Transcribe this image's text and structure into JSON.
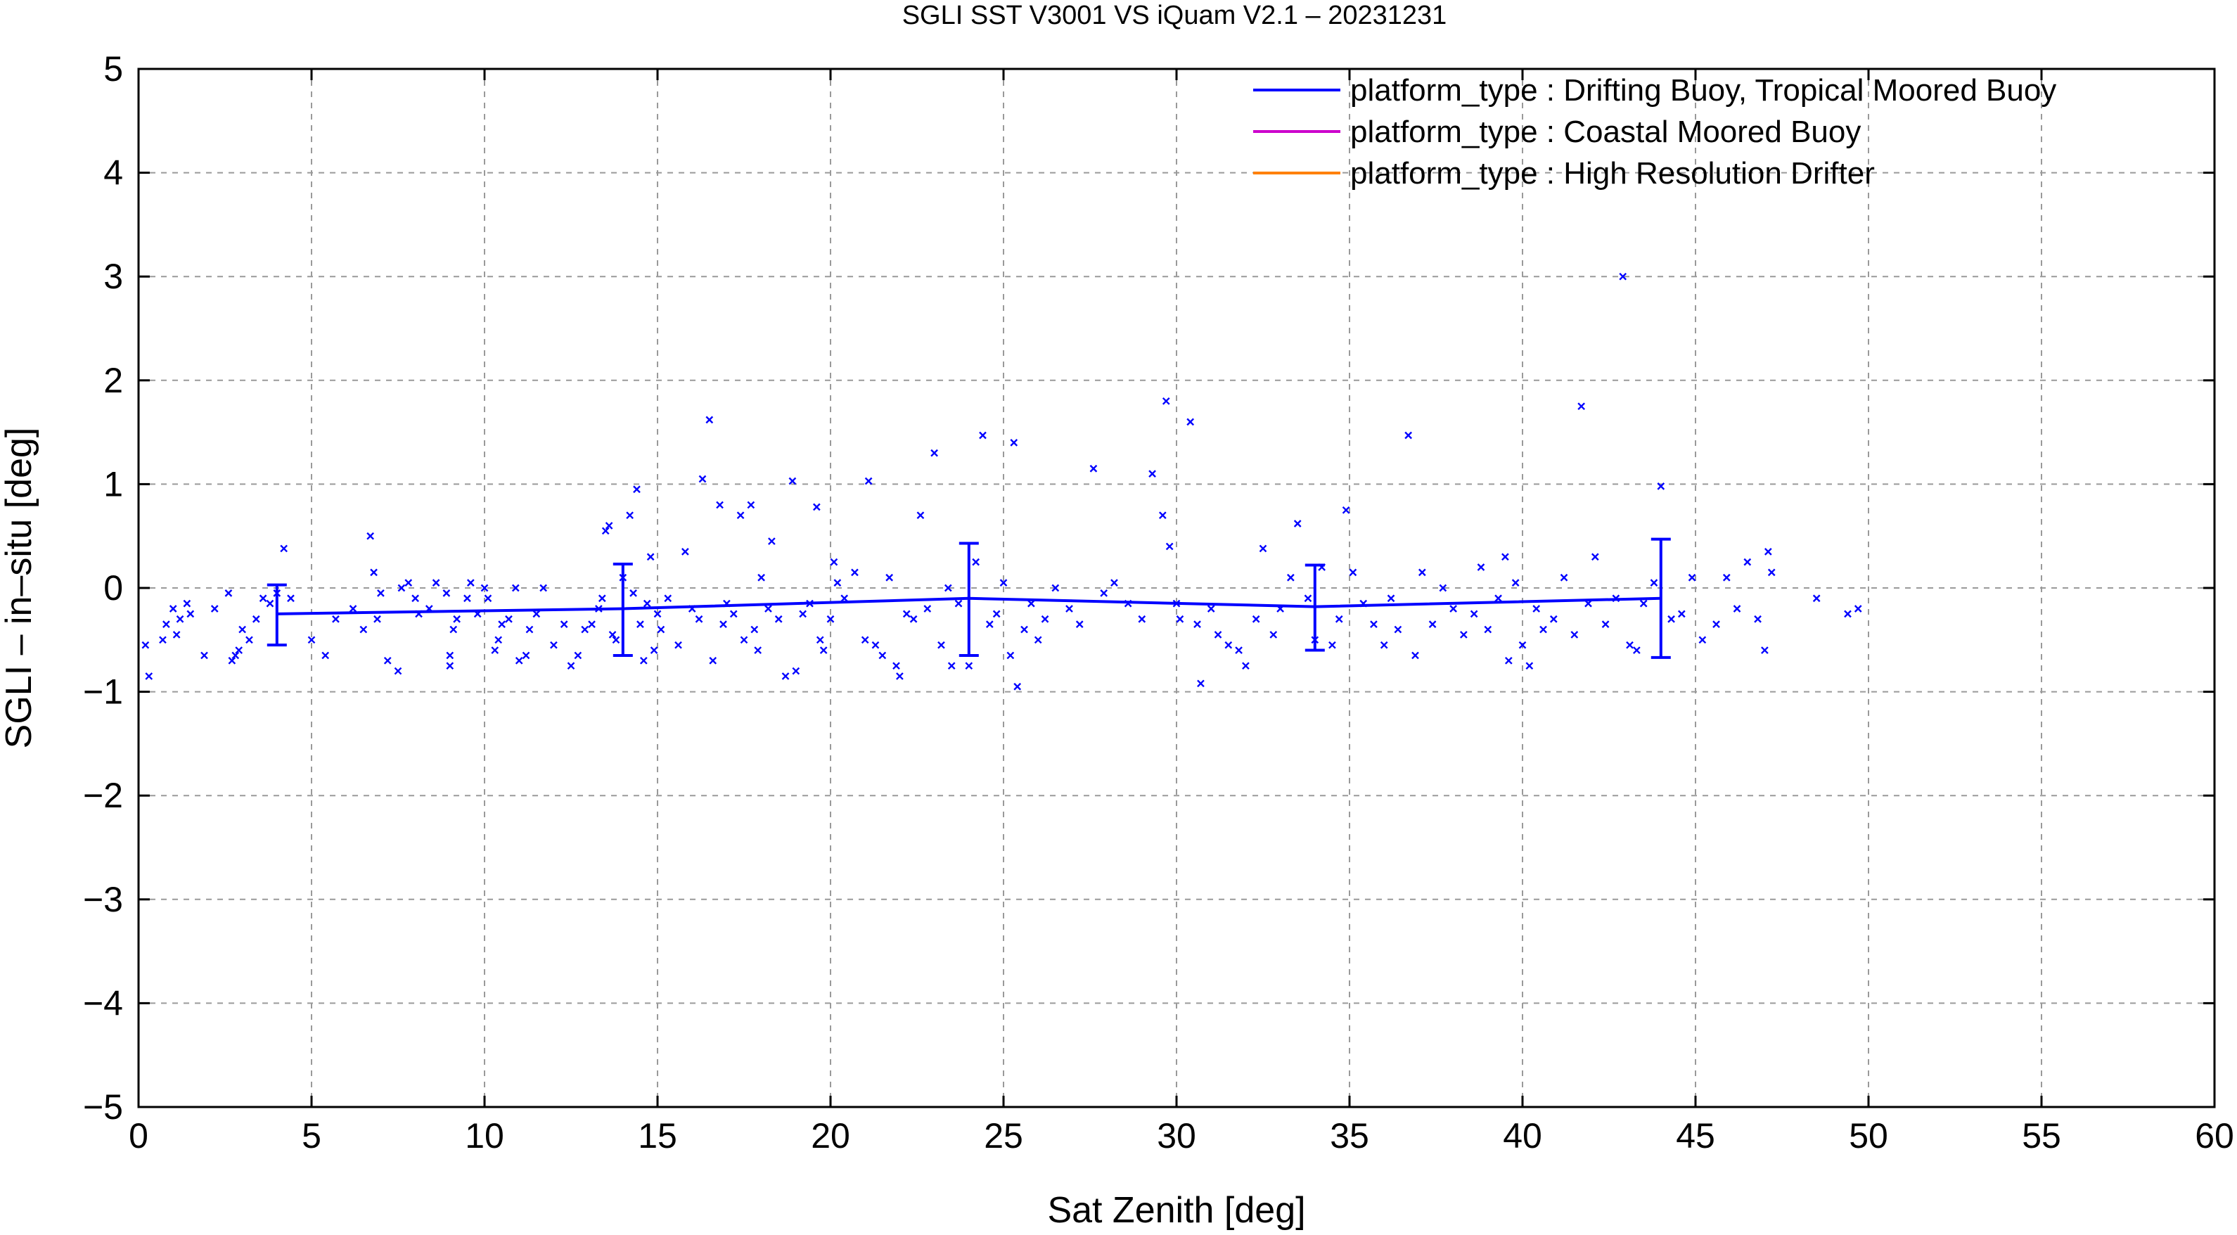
{
  "chart_data": {
    "type": "scatter",
    "title": "SGLI SST V3001 VS iQuam V2.1  – 20231231",
    "xlabel": "Sat Zenith [deg]",
    "ylabel": "SGLI – in–situ [deg]",
    "xlim": [
      0,
      60
    ],
    "ylim": [
      -5,
      5
    ],
    "xticks": [
      0,
      5,
      10,
      15,
      20,
      25,
      30,
      35,
      40,
      45,
      50,
      55,
      60
    ],
    "yticks": [
      5,
      4,
      3,
      2,
      1,
      0,
      -1,
      -2,
      -3,
      -4,
      -5
    ],
    "xtick_labels": [
      "0",
      "5",
      "10",
      "15",
      "20",
      "25",
      "30",
      "35",
      "40",
      "45",
      "50",
      "55",
      "60"
    ],
    "ytick_labels": [
      "5",
      "4",
      "3",
      "2",
      "1",
      "0",
      "−1",
      "−2",
      "−3",
      "−4",
      "−5"
    ],
    "grid": true,
    "legend_position": "top-right",
    "series": [
      {
        "name": "platform_type : Drifting Buoy, Tropical Moored Buoy",
        "color": "#0000ff",
        "mean_line": {
          "x": [
            4,
            14,
            24,
            34,
            44
          ],
          "y": [
            -0.25,
            -0.2,
            -0.1,
            -0.18,
            -0.1
          ],
          "err_low": [
            -0.55,
            -0.65,
            -0.65,
            -0.6,
            -0.67
          ],
          "err_high": [
            0.03,
            0.23,
            0.43,
            0.22,
            0.47
          ]
        },
        "points": [
          [
            0.2,
            -0.55
          ],
          [
            0.3,
            -0.85
          ],
          [
            0.7,
            -0.5
          ],
          [
            0.8,
            -0.35
          ],
          [
            1.0,
            -0.2
          ],
          [
            1.1,
            -0.45
          ],
          [
            1.2,
            -0.3
          ],
          [
            1.4,
            -0.15
          ],
          [
            1.5,
            -0.25
          ],
          [
            1.9,
            -0.65
          ],
          [
            2.2,
            -0.2
          ],
          [
            2.6,
            -0.05
          ],
          [
            2.7,
            -0.7
          ],
          [
            2.8,
            -0.65
          ],
          [
            2.9,
            -0.6
          ],
          [
            3.0,
            -0.4
          ],
          [
            3.2,
            -0.5
          ],
          [
            3.4,
            -0.3
          ],
          [
            3.6,
            -0.1
          ],
          [
            3.8,
            -0.15
          ],
          [
            4.0,
            -0.05
          ],
          [
            4.2,
            0.38
          ],
          [
            4.4,
            -0.1
          ],
          [
            5.0,
            -0.5
          ],
          [
            5.4,
            -0.65
          ],
          [
            5.7,
            -0.3
          ],
          [
            6.2,
            -0.2
          ],
          [
            6.5,
            -0.4
          ],
          [
            6.7,
            0.5
          ],
          [
            6.8,
            0.15
          ],
          [
            6.9,
            -0.3
          ],
          [
            7.0,
            -0.05
          ],
          [
            7.2,
            -0.7
          ],
          [
            7.5,
            -0.8
          ],
          [
            7.6,
            0.0
          ],
          [
            7.8,
            0.05
          ],
          [
            8.0,
            -0.1
          ],
          [
            8.1,
            -0.25
          ],
          [
            8.4,
            -0.2
          ],
          [
            8.6,
            0.05
          ],
          [
            8.9,
            -0.05
          ],
          [
            9.0,
            -0.75
          ],
          [
            9.0,
            -0.65
          ],
          [
            9.1,
            -0.4
          ],
          [
            9.2,
            -0.3
          ],
          [
            9.5,
            -0.1
          ],
          [
            9.6,
            0.05
          ],
          [
            9.8,
            -0.25
          ],
          [
            10.0,
            0.0
          ],
          [
            10.1,
            -0.1
          ],
          [
            10.3,
            -0.6
          ],
          [
            10.4,
            -0.5
          ],
          [
            10.5,
            -0.35
          ],
          [
            10.7,
            -0.3
          ],
          [
            10.9,
            0.0
          ],
          [
            11.0,
            -0.7
          ],
          [
            11.2,
            -0.65
          ],
          [
            11.3,
            -0.4
          ],
          [
            11.5,
            -0.25
          ],
          [
            11.7,
            0.0
          ],
          [
            12.0,
            -0.55
          ],
          [
            12.3,
            -0.35
          ],
          [
            12.5,
            -0.75
          ],
          [
            12.7,
            -0.65
          ],
          [
            12.9,
            -0.4
          ],
          [
            13.1,
            -0.35
          ],
          [
            13.3,
            -0.2
          ],
          [
            13.4,
            -0.1
          ],
          [
            13.5,
            0.55
          ],
          [
            13.6,
            0.6
          ],
          [
            13.7,
            -0.45
          ],
          [
            13.8,
            -0.5
          ],
          [
            14.0,
            0.1
          ],
          [
            14.2,
            0.7
          ],
          [
            14.3,
            -0.05
          ],
          [
            14.4,
            0.95
          ],
          [
            14.5,
            -0.35
          ],
          [
            14.6,
            -0.7
          ],
          [
            14.7,
            -0.15
          ],
          [
            14.8,
            0.3
          ],
          [
            14.9,
            -0.6
          ],
          [
            15.0,
            -0.25
          ],
          [
            15.1,
            -0.4
          ],
          [
            15.3,
            -0.1
          ],
          [
            15.6,
            -0.55
          ],
          [
            15.8,
            0.35
          ],
          [
            16.0,
            -0.2
          ],
          [
            16.2,
            -0.3
          ],
          [
            16.3,
            1.05
          ],
          [
            16.5,
            1.62
          ],
          [
            16.6,
            -0.7
          ],
          [
            16.8,
            0.8
          ],
          [
            16.9,
            -0.35
          ],
          [
            17.0,
            -0.15
          ],
          [
            17.2,
            -0.25
          ],
          [
            17.4,
            0.7
          ],
          [
            17.5,
            -0.5
          ],
          [
            17.7,
            0.8
          ],
          [
            17.8,
            -0.4
          ],
          [
            17.9,
            -0.6
          ],
          [
            18.0,
            0.1
          ],
          [
            18.2,
            -0.2
          ],
          [
            18.3,
            0.45
          ],
          [
            18.5,
            -0.3
          ],
          [
            18.7,
            -0.85
          ],
          [
            18.9,
            1.03
          ],
          [
            19.0,
            -0.8
          ],
          [
            19.2,
            -0.25
          ],
          [
            19.4,
            -0.15
          ],
          [
            19.6,
            0.78
          ],
          [
            19.7,
            -0.5
          ],
          [
            19.8,
            -0.6
          ],
          [
            20.0,
            -0.3
          ],
          [
            20.1,
            0.25
          ],
          [
            20.2,
            0.05
          ],
          [
            20.4,
            -0.1
          ],
          [
            20.7,
            0.15
          ],
          [
            21.0,
            -0.5
          ],
          [
            21.1,
            1.03
          ],
          [
            21.3,
            -0.55
          ],
          [
            21.5,
            -0.65
          ],
          [
            21.7,
            0.1
          ],
          [
            21.9,
            -0.75
          ],
          [
            22.0,
            -0.85
          ],
          [
            22.2,
            -0.25
          ],
          [
            22.4,
            -0.3
          ],
          [
            22.6,
            0.7
          ],
          [
            22.8,
            -0.2
          ],
          [
            23.0,
            1.3
          ],
          [
            23.2,
            -0.55
          ],
          [
            23.4,
            0.0
          ],
          [
            23.5,
            -0.75
          ],
          [
            23.7,
            -0.15
          ],
          [
            24.0,
            -0.75
          ],
          [
            24.2,
            0.25
          ],
          [
            24.4,
            1.47
          ],
          [
            24.6,
            -0.35
          ],
          [
            24.8,
            -0.25
          ],
          [
            25.0,
            0.05
          ],
          [
            25.2,
            -0.65
          ],
          [
            25.3,
            1.4
          ],
          [
            25.4,
            -0.95
          ],
          [
            25.6,
            -0.4
          ],
          [
            25.8,
            -0.15
          ],
          [
            26.0,
            -0.5
          ],
          [
            26.2,
            -0.3
          ],
          [
            26.5,
            0.0
          ],
          [
            26.9,
            -0.2
          ],
          [
            27.2,
            -0.35
          ],
          [
            27.6,
            1.15
          ],
          [
            27.9,
            -0.05
          ],
          [
            28.2,
            0.05
          ],
          [
            28.6,
            -0.15
          ],
          [
            29.0,
            -0.3
          ],
          [
            29.3,
            1.1
          ],
          [
            29.6,
            0.7
          ],
          [
            29.7,
            1.8
          ],
          [
            29.8,
            0.4
          ],
          [
            30.0,
            -0.15
          ],
          [
            30.1,
            -0.3
          ],
          [
            30.4,
            1.6
          ],
          [
            30.6,
            -0.35
          ],
          [
            30.7,
            -0.92
          ],
          [
            31.0,
            -0.2
          ],
          [
            31.2,
            -0.45
          ],
          [
            31.5,
            -0.55
          ],
          [
            31.8,
            -0.6
          ],
          [
            32.0,
            -0.75
          ],
          [
            32.3,
            -0.3
          ],
          [
            32.5,
            0.38
          ],
          [
            32.8,
            -0.45
          ],
          [
            33.0,
            -0.2
          ],
          [
            33.3,
            0.1
          ],
          [
            33.5,
            0.62
          ],
          [
            33.8,
            -0.1
          ],
          [
            34.0,
            -0.5
          ],
          [
            34.2,
            0.2
          ],
          [
            34.5,
            -0.55
          ],
          [
            34.7,
            -0.3
          ],
          [
            34.9,
            0.75
          ],
          [
            35.1,
            0.15
          ],
          [
            35.4,
            -0.15
          ],
          [
            35.7,
            -0.35
          ],
          [
            36.0,
            -0.55
          ],
          [
            36.2,
            -0.1
          ],
          [
            36.4,
            -0.4
          ],
          [
            36.7,
            1.47
          ],
          [
            36.9,
            -0.65
          ],
          [
            37.1,
            0.15
          ],
          [
            37.4,
            -0.35
          ],
          [
            37.7,
            0.0
          ],
          [
            38.0,
            -0.2
          ],
          [
            38.3,
            -0.45
          ],
          [
            38.6,
            -0.25
          ],
          [
            38.8,
            0.2
          ],
          [
            39.0,
            -0.4
          ],
          [
            39.3,
            -0.1
          ],
          [
            39.5,
            0.3
          ],
          [
            39.6,
            -0.7
          ],
          [
            39.8,
            0.05
          ],
          [
            40.0,
            -0.55
          ],
          [
            40.2,
            -0.75
          ],
          [
            40.4,
            -0.2
          ],
          [
            40.6,
            -0.4
          ],
          [
            40.9,
            -0.3
          ],
          [
            41.2,
            0.1
          ],
          [
            41.5,
            -0.45
          ],
          [
            41.7,
            1.75
          ],
          [
            41.9,
            -0.15
          ],
          [
            42.1,
            0.3
          ],
          [
            42.4,
            -0.35
          ],
          [
            42.7,
            -0.1
          ],
          [
            42.9,
            3.0
          ],
          [
            43.1,
            -0.55
          ],
          [
            43.3,
            -0.6
          ],
          [
            43.5,
            -0.15
          ],
          [
            43.8,
            0.05
          ],
          [
            44.0,
            0.98
          ],
          [
            44.3,
            -0.3
          ],
          [
            44.6,
            -0.25
          ],
          [
            44.9,
            0.1
          ],
          [
            45.2,
            -0.5
          ],
          [
            45.6,
            -0.35
          ],
          [
            45.9,
            0.1
          ],
          [
            46.2,
            -0.2
          ],
          [
            46.5,
            0.25
          ],
          [
            46.8,
            -0.3
          ],
          [
            47.0,
            -0.6
          ],
          [
            47.1,
            0.35
          ],
          [
            47.2,
            0.15
          ],
          [
            48.5,
            -0.1
          ],
          [
            49.4,
            -0.25
          ],
          [
            49.7,
            -0.2
          ]
        ]
      },
      {
        "name": "platform_type : Coastal Moored Buoy",
        "color": "#cc00cc"
      },
      {
        "name": "platform_type : High Resolution Drifter",
        "color": "#ff8000"
      }
    ]
  }
}
